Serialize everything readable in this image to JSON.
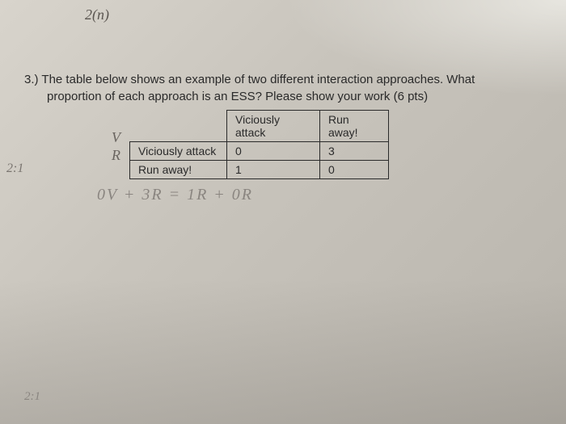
{
  "handwriting": {
    "top": "2(n)",
    "v_mark": "V",
    "r_mark": "R",
    "check1": "✓",
    "check2": "⌒",
    "left_note": "2:1",
    "equation": "0V + 3R = 1R + 0R",
    "bottom_note": "2:1"
  },
  "question": {
    "number": "3.)",
    "line1_text": "The table below shows an example of two different interaction approaches. What",
    "line2_text": "proportion of each approach is an ESS? Please show your work (6 pts)"
  },
  "table": {
    "header_col2": "Viciously attack",
    "header_col3": "Run away!",
    "row1_label": "Viciously attack",
    "row1_val1": "0",
    "row1_val2": "3",
    "row2_label": "Run away!",
    "row2_val1": "1",
    "row2_val2": "0"
  },
  "colors": {
    "text": "#2a2a2a",
    "pencil": "#6a6560",
    "pencil_light": "#8a8580",
    "paper_bg": "#d8d4cc"
  }
}
